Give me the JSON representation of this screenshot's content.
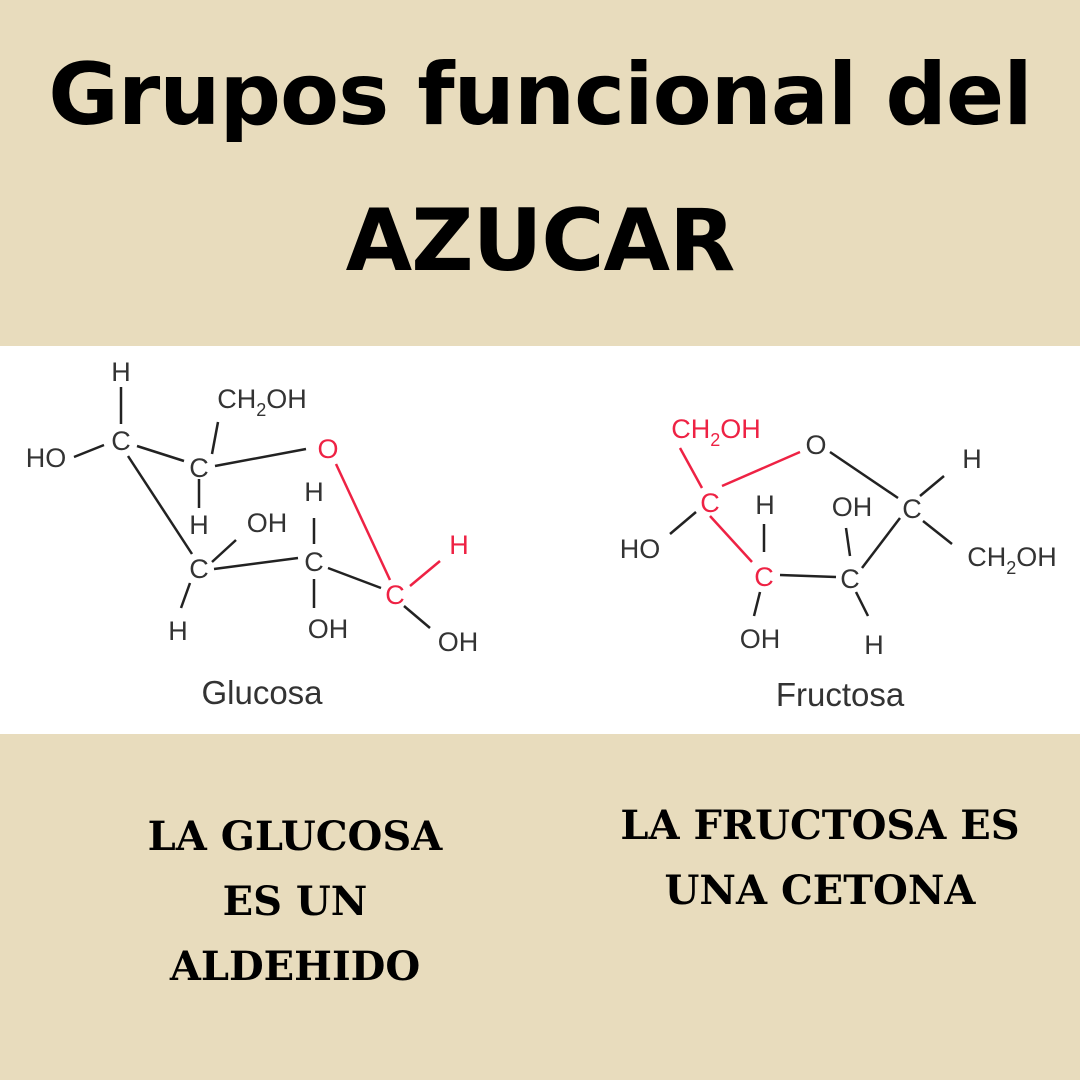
{
  "title": {
    "line1": "Grupos funcional del",
    "line2": "AZUCAR"
  },
  "colors": {
    "background": "#e8dcbd",
    "panel": "#ffffff",
    "bond": "#222222",
    "highlight": "#ee2244"
  },
  "glucose": {
    "name": "Glucosa",
    "atoms": {
      "h_top": "H",
      "c1": "C",
      "ho_left": "HO",
      "ch2oh": "CH2OH",
      "c2": "C",
      "o_ring": "O",
      "h_mid": "H",
      "h_right_top": "H",
      "oh_mid": "OH",
      "c3": "C",
      "c4": "C",
      "c5": "C",
      "h_red": "H",
      "h_bot": "H",
      "oh_bot": "OH",
      "oh_right": "OH"
    }
  },
  "fructose": {
    "name": "Fructosa",
    "atoms": {
      "ch2oh_top": "CH2OH",
      "o_ring": "O",
      "h_top_right": "H",
      "c_anomeric": "C",
      "h_mid": "H",
      "oh_mid": "OH",
      "c_right": "C",
      "ho_left": "HO",
      "c_lower_left": "C",
      "c_lower_mid": "C",
      "ch2oh_right": "CH2OH",
      "oh_bot": "OH",
      "h_bot": "H"
    }
  },
  "captions": {
    "left": [
      "LA GLUCOSA",
      "ES UN",
      "ALDEHIDO"
    ],
    "right": [
      "LA FRUCTOSA ES",
      "UNA CETONA"
    ]
  }
}
